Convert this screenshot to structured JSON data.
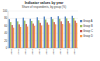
{
  "chart_data": {
    "type": "bar",
    "title": "Indicator values by year",
    "subtitle": "Share of respondents, by group (%)",
    "categories": [
      "2010",
      "2011",
      "2012",
      "2013",
      "2014",
      "2015",
      "2016",
      "2017",
      "2018",
      "2019"
    ],
    "series": [
      {
        "name": "Group A",
        "color": "#4f81bd",
        "values": [
          78,
          80,
          82,
          79,
          83,
          85,
          84,
          86,
          85,
          87
        ]
      },
      {
        "name": "Group B",
        "color": "#9bbb59",
        "values": [
          70,
          72,
          74,
          73,
          75,
          77,
          78,
          79,
          80,
          81
        ]
      },
      {
        "name": "Group C",
        "color": "#c0504d",
        "values": [
          62,
          64,
          65,
          66,
          68,
          69,
          70,
          72,
          73,
          74
        ]
      },
      {
        "name": "Group D",
        "color": "#f79646",
        "values": [
          55,
          57,
          58,
          60,
          61,
          63,
          64,
          65,
          67,
          68
        ]
      }
    ],
    "ylim": [
      0,
      100
    ],
    "yticks": [
      0,
      20,
      40,
      60,
      80,
      100
    ],
    "grid": true,
    "legend": "right"
  }
}
